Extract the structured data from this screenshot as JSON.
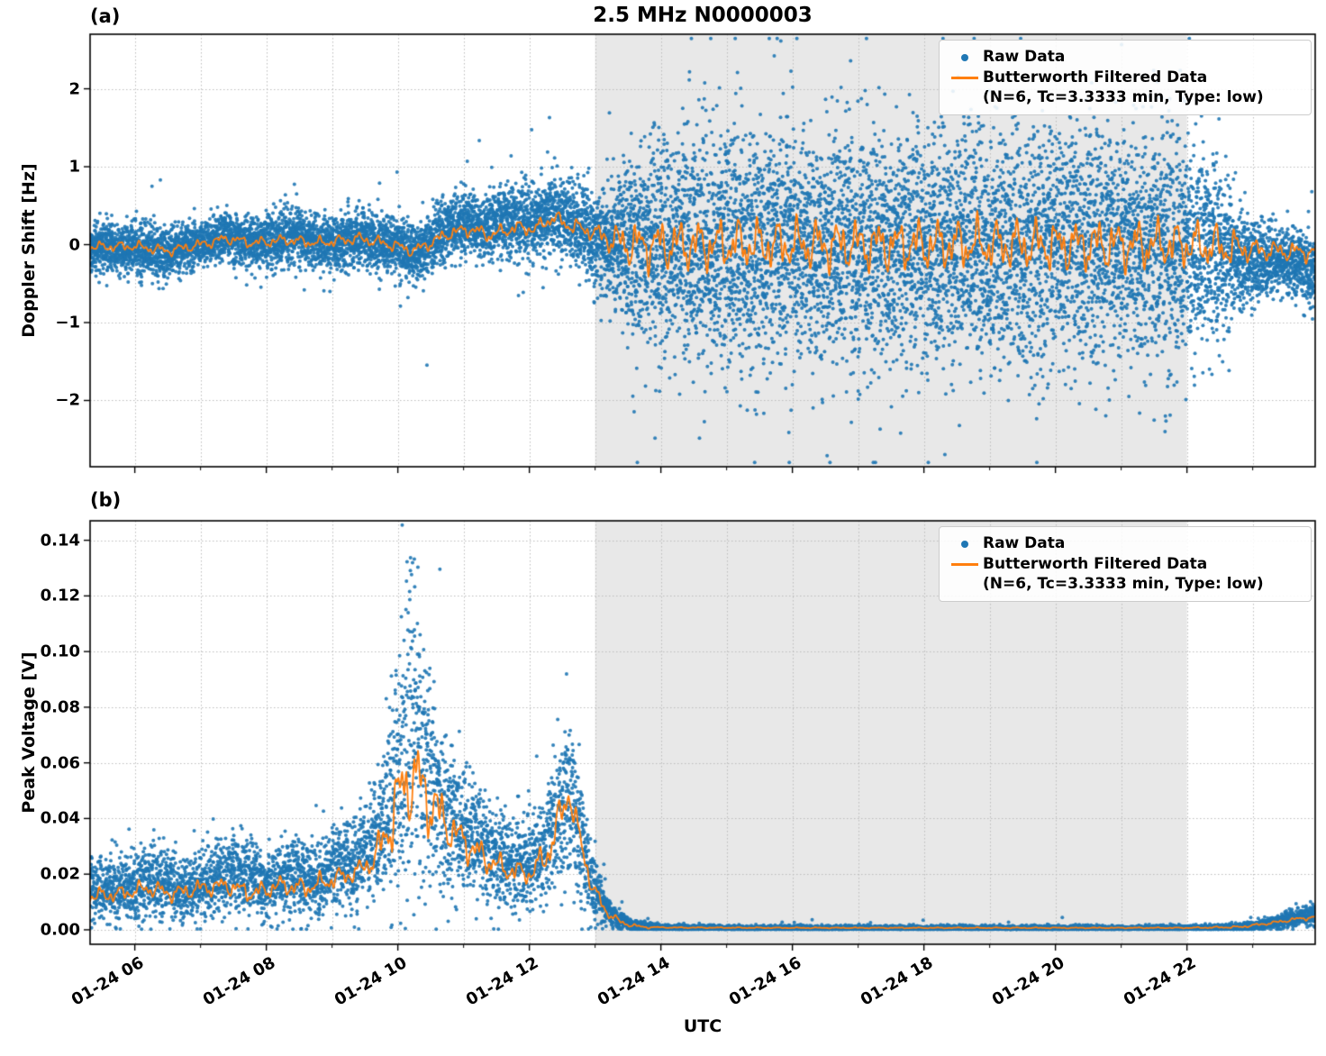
{
  "colors": {
    "raw": "#1f77b4",
    "filtered": "#ff7f0e",
    "shade": "#e8e8e8",
    "grid": "#bcbcbc",
    "frame": "#000000"
  },
  "chart_data": [
    {
      "type": "scatter+line",
      "panel_label": "(a)",
      "title": "2.5 MHz N0000003",
      "ylabel": "Doppler Shift [Hz]",
      "xlabel": "",
      "ylim": [
        -2.85,
        2.7
      ],
      "ytick_values": [
        -2,
        -1,
        0,
        1,
        2
      ],
      "ytick_labels": [
        "−2",
        "−1",
        "0",
        "1",
        "2"
      ],
      "x_range_hours": [
        5.32,
        23.95
      ],
      "shaded_region_hours": [
        13.0,
        22.0
      ],
      "grid": "dotted",
      "legend_position": "upper right",
      "nonnegative": false,
      "series": [
        {
          "name": "Raw Data",
          "kind": "scatter",
          "color": "#1f77b4",
          "envelope": [
            [
              5.32,
              -0.02,
              0.28
            ],
            [
              5.8,
              -0.05,
              0.26
            ],
            [
              6.2,
              -0.08,
              0.3
            ],
            [
              6.5,
              -0.12,
              0.33
            ],
            [
              6.8,
              -0.02,
              0.26
            ],
            [
              7.1,
              0.02,
              0.25
            ],
            [
              7.35,
              0.12,
              0.3
            ],
            [
              7.6,
              0.06,
              0.28
            ],
            [
              7.9,
              0.02,
              0.28
            ],
            [
              8.2,
              0.08,
              0.32
            ],
            [
              8.5,
              0.1,
              0.33
            ],
            [
              8.8,
              0.02,
              0.3
            ],
            [
              9.1,
              0.02,
              0.3
            ],
            [
              9.4,
              0.1,
              0.34
            ],
            [
              9.7,
              0.05,
              0.32
            ],
            [
              10.0,
              -0.02,
              0.3
            ],
            [
              10.25,
              -0.12,
              0.36
            ],
            [
              10.5,
              0.05,
              0.32
            ],
            [
              10.8,
              0.22,
              0.36
            ],
            [
              11.05,
              0.28,
              0.36
            ],
            [
              11.3,
              0.18,
              0.34
            ],
            [
              11.55,
              0.28,
              0.38
            ],
            [
              11.8,
              0.3,
              0.42
            ],
            [
              12.05,
              0.28,
              0.45
            ],
            [
              12.3,
              0.42,
              0.42
            ],
            [
              12.55,
              0.3,
              0.42
            ],
            [
              12.8,
              0.22,
              0.48
            ],
            [
              13.0,
              0.1,
              0.55
            ],
            [
              13.3,
              0.05,
              0.75
            ],
            [
              13.6,
              0.0,
              1.0
            ],
            [
              13.9,
              0.0,
              1.2
            ],
            [
              14.2,
              0.0,
              1.3
            ],
            [
              15.0,
              0.0,
              1.32
            ],
            [
              16.0,
              0.02,
              1.3
            ],
            [
              17.0,
              -0.02,
              1.32
            ],
            [
              18.0,
              0.0,
              1.3
            ],
            [
              19.0,
              0.0,
              1.32
            ],
            [
              20.0,
              0.02,
              1.3
            ],
            [
              21.0,
              0.0,
              1.3
            ],
            [
              22.0,
              -0.02,
              1.25
            ],
            [
              22.4,
              -0.05,
              1.0
            ],
            [
              22.8,
              -0.15,
              0.6
            ],
            [
              23.1,
              -0.25,
              0.45
            ],
            [
              23.4,
              -0.2,
              0.38
            ],
            [
              23.7,
              -0.25,
              0.4
            ],
            [
              23.95,
              -0.35,
              0.45
            ]
          ]
        },
        {
          "name": "Butterworth Filtered Data",
          "sublabel": "(N=6, Tc=3.3333 min, Type: low)",
          "kind": "line",
          "color": "#ff7f0e",
          "baseline": [
            [
              5.32,
              -0.03
            ],
            [
              6.0,
              -0.02
            ],
            [
              6.5,
              -0.08
            ],
            [
              7.0,
              0.0
            ],
            [
              7.4,
              0.08
            ],
            [
              7.8,
              0.02
            ],
            [
              8.3,
              0.06
            ],
            [
              8.8,
              0.02
            ],
            [
              9.4,
              0.08
            ],
            [
              9.9,
              0.0
            ],
            [
              10.25,
              -0.08
            ],
            [
              10.8,
              0.15
            ],
            [
              11.1,
              0.2
            ],
            [
              11.4,
              0.12
            ],
            [
              11.8,
              0.22
            ],
            [
              12.1,
              0.2
            ],
            [
              12.35,
              0.35
            ],
            [
              12.6,
              0.25
            ],
            [
              12.9,
              0.18
            ],
            [
              13.2,
              0.08
            ],
            [
              13.5,
              0.0
            ],
            [
              14.0,
              0.0
            ],
            [
              16.0,
              0.0
            ],
            [
              18.0,
              0.0
            ],
            [
              20.0,
              0.0
            ],
            [
              22.0,
              0.0
            ],
            [
              22.8,
              -0.05
            ],
            [
              23.3,
              -0.08
            ],
            [
              23.95,
              -0.1
            ]
          ],
          "wiggle_amp": [
            [
              5.32,
              0.07
            ],
            [
              9.0,
              0.08
            ],
            [
              12.0,
              0.1
            ],
            [
              13.0,
              0.12
            ],
            [
              13.5,
              0.3
            ],
            [
              14.0,
              0.35
            ],
            [
              21.0,
              0.35
            ],
            [
              22.6,
              0.3
            ],
            [
              23.0,
              0.15
            ],
            [
              23.95,
              0.12
            ]
          ]
        }
      ]
    },
    {
      "type": "scatter+line",
      "panel_label": "(b)",
      "title": "",
      "ylabel": "Peak Voltage [V]",
      "xlabel": "UTC",
      "ylim": [
        -0.0052,
        0.147
      ],
      "ytick_values": [
        0.0,
        0.02,
        0.04,
        0.06,
        0.08,
        0.1,
        0.12,
        0.14
      ],
      "ytick_labels": [
        "0.00",
        "0.02",
        "0.04",
        "0.06",
        "0.08",
        "0.10",
        "0.12",
        "0.14"
      ],
      "x_range_hours": [
        5.32,
        23.95
      ],
      "xtick_values": [
        6,
        8,
        10,
        12,
        14,
        16,
        18,
        20,
        22
      ],
      "xtick_labels": [
        "01-24 06",
        "01-24 08",
        "01-24 10",
        "01-24 12",
        "01-24 14",
        "01-24 16",
        "01-24 18",
        "01-24 20",
        "01-24 22"
      ],
      "shaded_region_hours": [
        13.0,
        22.0
      ],
      "grid": "dotted",
      "legend_position": "upper right",
      "nonnegative": true,
      "series": [
        {
          "name": "Raw Data",
          "kind": "scatter",
          "color": "#1f77b4",
          "envelope": [
            [
              5.32,
              0.015,
              0.01
            ],
            [
              5.7,
              0.014,
              0.01
            ],
            [
              6.0,
              0.016,
              0.011
            ],
            [
              6.4,
              0.018,
              0.012
            ],
            [
              6.8,
              0.014,
              0.01
            ],
            [
              7.2,
              0.018,
              0.012
            ],
            [
              7.6,
              0.02,
              0.013
            ],
            [
              8.0,
              0.016,
              0.011
            ],
            [
              8.4,
              0.02,
              0.013
            ],
            [
              8.8,
              0.018,
              0.012
            ],
            [
              9.1,
              0.022,
              0.014
            ],
            [
              9.4,
              0.026,
              0.016
            ],
            [
              9.7,
              0.032,
              0.02
            ],
            [
              9.9,
              0.045,
              0.03
            ],
            [
              10.05,
              0.065,
              0.045
            ],
            [
              10.2,
              0.075,
              0.05
            ],
            [
              10.35,
              0.065,
              0.045
            ],
            [
              10.5,
              0.05,
              0.032
            ],
            [
              10.7,
              0.042,
              0.026
            ],
            [
              10.9,
              0.038,
              0.022
            ],
            [
              11.1,
              0.034,
              0.02
            ],
            [
              11.4,
              0.028,
              0.017
            ],
            [
              11.7,
              0.024,
              0.015
            ],
            [
              12.0,
              0.024,
              0.015
            ],
            [
              12.25,
              0.03,
              0.018
            ],
            [
              12.45,
              0.04,
              0.025
            ],
            [
              12.6,
              0.05,
              0.03
            ],
            [
              12.75,
              0.035,
              0.022
            ],
            [
              12.95,
              0.018,
              0.012
            ],
            [
              13.15,
              0.008,
              0.006
            ],
            [
              13.35,
              0.0035,
              0.003
            ],
            [
              13.6,
              0.0015,
              0.0015
            ],
            [
              14.0,
              0.0008,
              0.001
            ],
            [
              15.0,
              0.0006,
              0.0008
            ],
            [
              17.0,
              0.0006,
              0.0008
            ],
            [
              19.0,
              0.0006,
              0.0008
            ],
            [
              21.0,
              0.0006,
              0.0008
            ],
            [
              22.5,
              0.0007,
              0.0009
            ],
            [
              23.0,
              0.0012,
              0.0015
            ],
            [
              23.4,
              0.003,
              0.0025
            ],
            [
              23.7,
              0.0045,
              0.003
            ],
            [
              23.95,
              0.005,
              0.0035
            ]
          ]
        },
        {
          "name": "Butterworth Filtered Data",
          "sublabel": "(N=6, Tc=3.3333 min, Type: low)",
          "kind": "line",
          "color": "#ff7f0e",
          "baseline": [
            [
              5.32,
              0.012
            ],
            [
              5.8,
              0.013
            ],
            [
              6.2,
              0.015
            ],
            [
              6.6,
              0.013
            ],
            [
              7.0,
              0.015
            ],
            [
              7.4,
              0.016
            ],
            [
              7.8,
              0.013
            ],
            [
              8.2,
              0.016
            ],
            [
              8.6,
              0.015
            ],
            [
              9.0,
              0.018
            ],
            [
              9.4,
              0.021
            ],
            [
              9.7,
              0.027
            ],
            [
              9.9,
              0.04
            ],
            [
              10.1,
              0.052
            ],
            [
              10.25,
              0.055
            ],
            [
              10.4,
              0.05
            ],
            [
              10.6,
              0.042
            ],
            [
              10.8,
              0.036
            ],
            [
              11.0,
              0.032
            ],
            [
              11.3,
              0.026
            ],
            [
              11.6,
              0.022
            ],
            [
              12.0,
              0.02
            ],
            [
              12.25,
              0.026
            ],
            [
              12.5,
              0.042
            ],
            [
              12.6,
              0.05
            ],
            [
              12.75,
              0.034
            ],
            [
              12.95,
              0.016
            ],
            [
              13.15,
              0.007
            ],
            [
              13.4,
              0.0025
            ],
            [
              13.7,
              0.001
            ],
            [
              14.2,
              0.0008
            ],
            [
              16.0,
              0.0007
            ],
            [
              18.0,
              0.0007
            ],
            [
              20.0,
              0.0007
            ],
            [
              22.0,
              0.0007
            ],
            [
              22.8,
              0.001
            ],
            [
              23.3,
              0.0025
            ],
            [
              23.7,
              0.004
            ],
            [
              23.95,
              0.0045
            ]
          ],
          "wiggle_amp": [
            [
              5.32,
              0.003
            ],
            [
              9.5,
              0.004
            ],
            [
              9.8,
              0.01
            ],
            [
              10.0,
              0.016
            ],
            [
              10.5,
              0.014
            ],
            [
              10.8,
              0.008
            ],
            [
              11.5,
              0.005
            ],
            [
              12.0,
              0.004
            ],
            [
              12.4,
              0.008
            ],
            [
              12.7,
              0.006
            ],
            [
              13.0,
              0.003
            ],
            [
              13.4,
              0.001
            ],
            [
              14.0,
              0.0002
            ],
            [
              22.0,
              0.0002
            ],
            [
              23.0,
              0.0005
            ],
            [
              23.95,
              0.0008
            ]
          ]
        }
      ]
    }
  ]
}
